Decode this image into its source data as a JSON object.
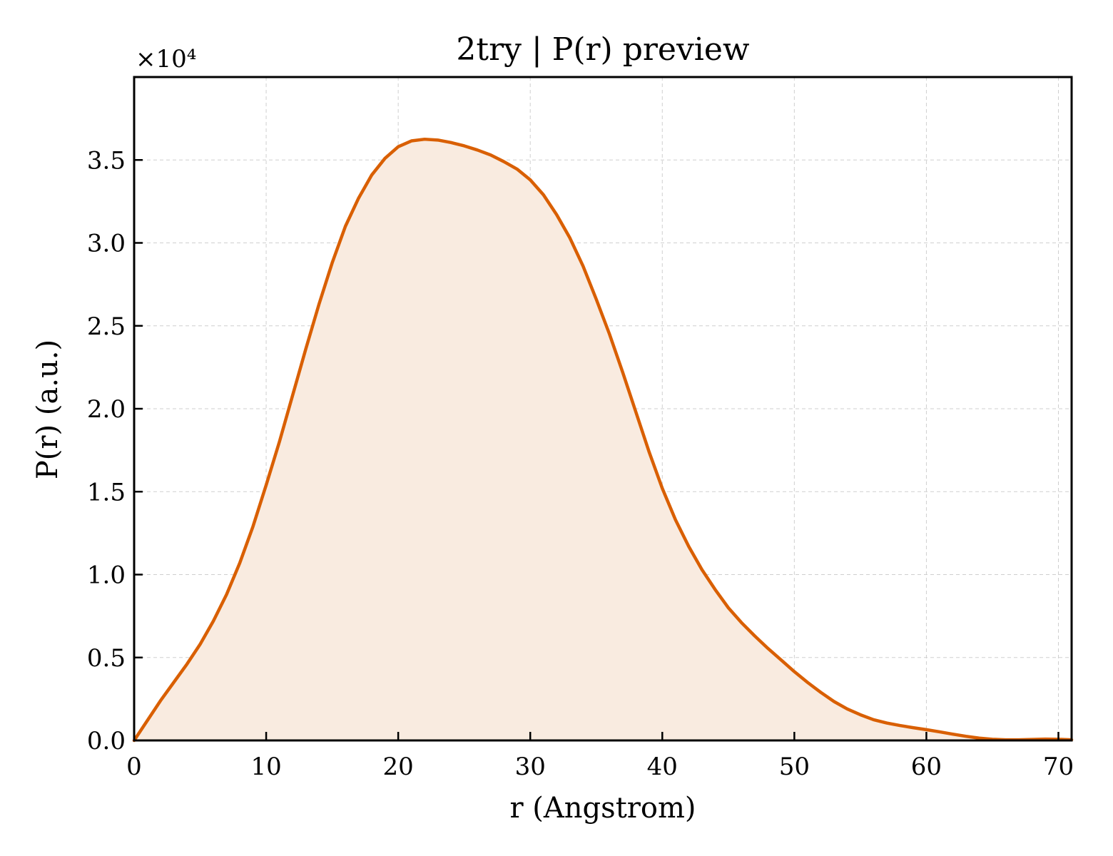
{
  "chart_data": {
    "type": "area",
    "title": "2try | P(r) preview",
    "xlabel": "r (Angstrom)",
    "ylabel": "P(r) (a.u.)",
    "y_multiplier_text": "×10⁴",
    "xlim": [
      0,
      71
    ],
    "ylim": [
      0,
      4.0
    ],
    "x_ticks": [
      0,
      10,
      20,
      30,
      40,
      50,
      60,
      70
    ],
    "x_tick_labels": [
      "0",
      "10",
      "20",
      "30",
      "40",
      "50",
      "60",
      "70"
    ],
    "y_ticks": [
      0,
      0.5,
      1.0,
      1.5,
      2.0,
      2.5,
      3.0,
      3.5
    ],
    "y_tick_labels": [
      "0.0",
      "0.5",
      "1.0",
      "1.5",
      "2.0",
      "2.5",
      "3.0",
      "3.5"
    ],
    "grid": true,
    "line_color": "#d95f02",
    "fill_color": "#f9ebe0",
    "series": [
      {
        "x": [
          0,
          1,
          2,
          3,
          4,
          5,
          6,
          7,
          8,
          9,
          10,
          11,
          12,
          13,
          14,
          15,
          16,
          17,
          18,
          19,
          20,
          21,
          22,
          23,
          24,
          25,
          26,
          27,
          28,
          29,
          30,
          31,
          32,
          33,
          34,
          35,
          36,
          37,
          38,
          39,
          40,
          41,
          42,
          43,
          44,
          45,
          46,
          47,
          48,
          49,
          50,
          51,
          52,
          53,
          54,
          55,
          56,
          57,
          58,
          59,
          60,
          61,
          62,
          63,
          64,
          65,
          66,
          67,
          68,
          69,
          70,
          71
        ],
        "values": [
          0.0,
          0.12,
          0.24,
          0.35,
          0.46,
          0.58,
          0.72,
          0.88,
          1.07,
          1.29,
          1.54,
          1.8,
          2.08,
          2.36,
          2.63,
          2.88,
          3.1,
          3.27,
          3.41,
          3.51,
          3.58,
          3.615,
          3.625,
          3.62,
          3.605,
          3.585,
          3.56,
          3.53,
          3.49,
          3.445,
          3.38,
          3.29,
          3.17,
          3.03,
          2.86,
          2.66,
          2.45,
          2.22,
          1.98,
          1.74,
          1.52,
          1.33,
          1.17,
          1.03,
          0.91,
          0.8,
          0.71,
          0.63,
          0.555,
          0.485,
          0.415,
          0.35,
          0.29,
          0.235,
          0.19,
          0.155,
          0.125,
          0.105,
          0.09,
          0.077,
          0.065,
          0.052,
          0.038,
          0.025,
          0.014,
          0.007,
          0.004,
          0.004,
          0.006,
          0.008,
          0.007,
          0.004
        ]
      }
    ]
  }
}
